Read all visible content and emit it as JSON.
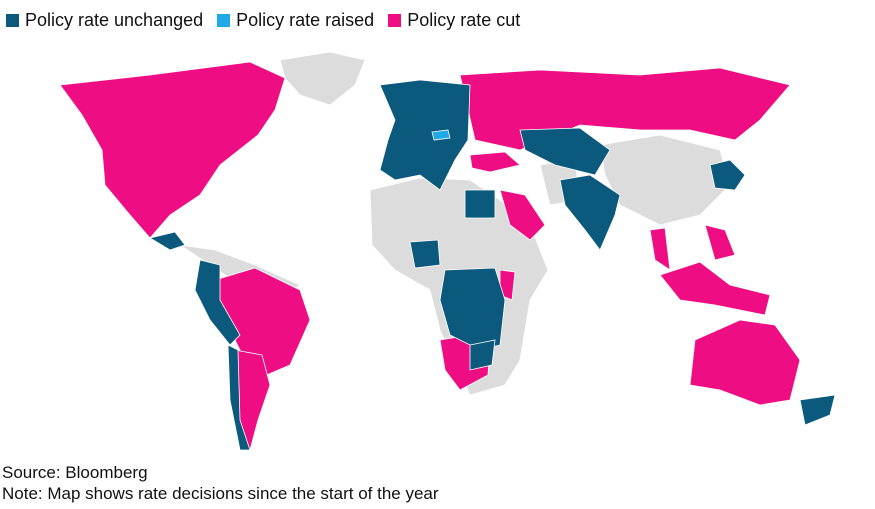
{
  "legend": [
    {
      "label": "Policy rate unchanged",
      "color": "#0b5a7e"
    },
    {
      "label": "Policy rate raised",
      "color": "#1fa9e6"
    },
    {
      "label": "Policy rate cut",
      "color": "#ef0d84"
    }
  ],
  "source": "Source: Bloomberg",
  "note": "Note: Map shows rate decisions since the start of the year"
}
